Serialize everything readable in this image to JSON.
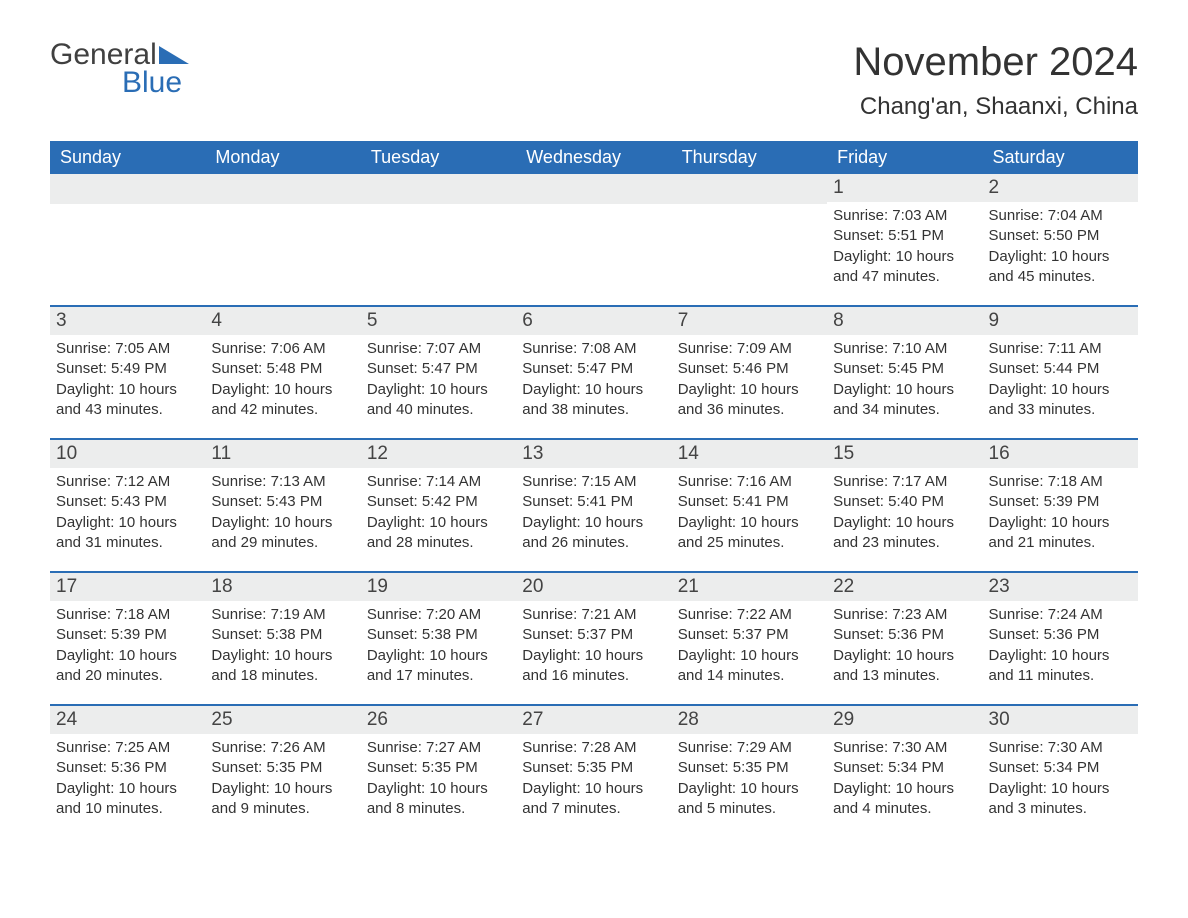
{
  "brand": {
    "general": "General",
    "blue": "Blue",
    "icon_color": "#2a6db5"
  },
  "title": "November 2024",
  "location": "Chang'an, Shaanxi, China",
  "colors": {
    "header_bg": "#2a6db5",
    "header_text": "#ffffff",
    "daynum_bg": "#eceded",
    "row_divider": "#2a6db5",
    "body_text": "#333333",
    "page_bg": "#ffffff"
  },
  "typography": {
    "title_fontsize": 40,
    "location_fontsize": 24,
    "weekday_fontsize": 18,
    "daynum_fontsize": 19,
    "body_fontsize": 15
  },
  "weekdays": [
    "Sunday",
    "Monday",
    "Tuesday",
    "Wednesday",
    "Thursday",
    "Friday",
    "Saturday"
  ],
  "weeks": [
    [
      null,
      null,
      null,
      null,
      null,
      {
        "n": "1",
        "sunrise": "7:03 AM",
        "sunset": "5:51 PM",
        "daylight": "10 hours and 47 minutes."
      },
      {
        "n": "2",
        "sunrise": "7:04 AM",
        "sunset": "5:50 PM",
        "daylight": "10 hours and 45 minutes."
      }
    ],
    [
      {
        "n": "3",
        "sunrise": "7:05 AM",
        "sunset": "5:49 PM",
        "daylight": "10 hours and 43 minutes."
      },
      {
        "n": "4",
        "sunrise": "7:06 AM",
        "sunset": "5:48 PM",
        "daylight": "10 hours and 42 minutes."
      },
      {
        "n": "5",
        "sunrise": "7:07 AM",
        "sunset": "5:47 PM",
        "daylight": "10 hours and 40 minutes."
      },
      {
        "n": "6",
        "sunrise": "7:08 AM",
        "sunset": "5:47 PM",
        "daylight": "10 hours and 38 minutes."
      },
      {
        "n": "7",
        "sunrise": "7:09 AM",
        "sunset": "5:46 PM",
        "daylight": "10 hours and 36 minutes."
      },
      {
        "n": "8",
        "sunrise": "7:10 AM",
        "sunset": "5:45 PM",
        "daylight": "10 hours and 34 minutes."
      },
      {
        "n": "9",
        "sunrise": "7:11 AM",
        "sunset": "5:44 PM",
        "daylight": "10 hours and 33 minutes."
      }
    ],
    [
      {
        "n": "10",
        "sunrise": "7:12 AM",
        "sunset": "5:43 PM",
        "daylight": "10 hours and 31 minutes."
      },
      {
        "n": "11",
        "sunrise": "7:13 AM",
        "sunset": "5:43 PM",
        "daylight": "10 hours and 29 minutes."
      },
      {
        "n": "12",
        "sunrise": "7:14 AM",
        "sunset": "5:42 PM",
        "daylight": "10 hours and 28 minutes."
      },
      {
        "n": "13",
        "sunrise": "7:15 AM",
        "sunset": "5:41 PM",
        "daylight": "10 hours and 26 minutes."
      },
      {
        "n": "14",
        "sunrise": "7:16 AM",
        "sunset": "5:41 PM",
        "daylight": "10 hours and 25 minutes."
      },
      {
        "n": "15",
        "sunrise": "7:17 AM",
        "sunset": "5:40 PM",
        "daylight": "10 hours and 23 minutes."
      },
      {
        "n": "16",
        "sunrise": "7:18 AM",
        "sunset": "5:39 PM",
        "daylight": "10 hours and 21 minutes."
      }
    ],
    [
      {
        "n": "17",
        "sunrise": "7:18 AM",
        "sunset": "5:39 PM",
        "daylight": "10 hours and 20 minutes."
      },
      {
        "n": "18",
        "sunrise": "7:19 AM",
        "sunset": "5:38 PM",
        "daylight": "10 hours and 18 minutes."
      },
      {
        "n": "19",
        "sunrise": "7:20 AM",
        "sunset": "5:38 PM",
        "daylight": "10 hours and 17 minutes."
      },
      {
        "n": "20",
        "sunrise": "7:21 AM",
        "sunset": "5:37 PM",
        "daylight": "10 hours and 16 minutes."
      },
      {
        "n": "21",
        "sunrise": "7:22 AM",
        "sunset": "5:37 PM",
        "daylight": "10 hours and 14 minutes."
      },
      {
        "n": "22",
        "sunrise": "7:23 AM",
        "sunset": "5:36 PM",
        "daylight": "10 hours and 13 minutes."
      },
      {
        "n": "23",
        "sunrise": "7:24 AM",
        "sunset": "5:36 PM",
        "daylight": "10 hours and 11 minutes."
      }
    ],
    [
      {
        "n": "24",
        "sunrise": "7:25 AM",
        "sunset": "5:36 PM",
        "daylight": "10 hours and 10 minutes."
      },
      {
        "n": "25",
        "sunrise": "7:26 AM",
        "sunset": "5:35 PM",
        "daylight": "10 hours and 9 minutes."
      },
      {
        "n": "26",
        "sunrise": "7:27 AM",
        "sunset": "5:35 PM",
        "daylight": "10 hours and 8 minutes."
      },
      {
        "n": "27",
        "sunrise": "7:28 AM",
        "sunset": "5:35 PM",
        "daylight": "10 hours and 7 minutes."
      },
      {
        "n": "28",
        "sunrise": "7:29 AM",
        "sunset": "5:35 PM",
        "daylight": "10 hours and 5 minutes."
      },
      {
        "n": "29",
        "sunrise": "7:30 AM",
        "sunset": "5:34 PM",
        "daylight": "10 hours and 4 minutes."
      },
      {
        "n": "30",
        "sunrise": "7:30 AM",
        "sunset": "5:34 PM",
        "daylight": "10 hours and 3 minutes."
      }
    ]
  ],
  "labels": {
    "sunrise": "Sunrise: ",
    "sunset": "Sunset: ",
    "daylight": "Daylight: "
  }
}
